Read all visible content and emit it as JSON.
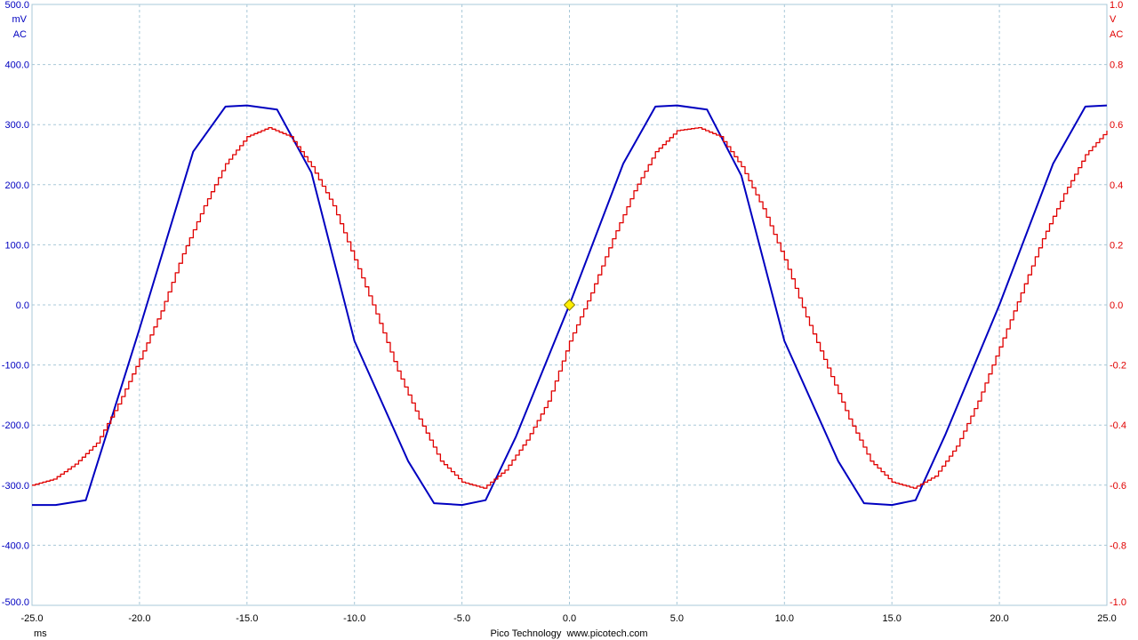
{
  "chart_data": {
    "type": "line",
    "footer": "Pico Technology  www.picotech.com",
    "x_axis": {
      "unit": "ms",
      "range": [
        -25,
        25
      ],
      "ticks": [
        "-25.0",
        "-20.0",
        "-15.0",
        "-10.0",
        "-5.0",
        "0.0",
        "5.0",
        "10.0",
        "15.0",
        "20.0",
        "25.0"
      ]
    },
    "y_left": {
      "unit": "mV",
      "coupling": "AC",
      "range": [
        -500,
        500
      ],
      "color": "#0000c0",
      "ticks": [
        "500.0",
        "400.0",
        "300.0",
        "200.0",
        "100.0",
        "0.0",
        "-100.0",
        "-200.0",
        "-300.0",
        "-400.0",
        "-500.0"
      ]
    },
    "y_right": {
      "unit": "V",
      "coupling": "AC",
      "range": [
        -1.0,
        1.0
      ],
      "color": "#e00000",
      "ticks": [
        "1.0",
        "0.8",
        "0.6",
        "0.4",
        "0.2",
        "0.0",
        "-0.2",
        "-0.4",
        "-0.6",
        "-0.8",
        "-1.0"
      ]
    },
    "grid": true,
    "trigger_marker": {
      "x": 0.0,
      "y": 0.0,
      "color": "#ffee00"
    },
    "series": [
      {
        "color": "#0000c0",
        "axis": "left",
        "x": [
          -25.0,
          -23.9,
          -22.5,
          -20.0,
          -17.5,
          -16.0,
          -15.0,
          -13.6,
          -12.0,
          -10.0,
          -7.5,
          -6.3,
          -5.0,
          -3.9,
          -2.5,
          0.0,
          2.5,
          4.0,
          5.0,
          6.4,
          8.0,
          10.0,
          12.5,
          13.7,
          15.0,
          16.1,
          17.5,
          20.0,
          22.5,
          24.0,
          25.0
        ],
        "y": [
          -333,
          -333,
          -325,
          -40,
          255,
          330,
          332,
          325,
          220,
          -60,
          -260,
          -330,
          -333,
          -325,
          -220,
          0,
          235,
          330,
          332,
          325,
          215,
          -60,
          -260,
          -330,
          -333,
          -325,
          -215,
          0,
          235,
          330,
          332
        ]
      },
      {
        "color": "#e00000",
        "axis": "right",
        "x": [
          -25.0,
          -24.0,
          -23.0,
          -22.0,
          -21.0,
          -20.0,
          -19.0,
          -18.0,
          -17.0,
          -16.0,
          -15.0,
          -14.0,
          -13.0,
          -12.0,
          -11.0,
          -10.0,
          -9.0,
          -8.0,
          -7.0,
          -6.0,
          -5.0,
          -4.0,
          -3.0,
          -2.0,
          -1.0,
          0.0,
          1.0,
          2.0,
          3.0,
          4.0,
          5.0,
          6.0,
          7.0,
          8.0,
          9.0,
          10.0,
          11.0,
          12.0,
          13.0,
          14.0,
          15.0,
          16.0,
          17.0,
          18.0,
          19.0,
          20.0,
          21.0,
          22.0,
          23.0,
          24.0,
          25.0
        ],
        "y": [
          -0.6,
          -0.58,
          -0.53,
          -0.46,
          -0.33,
          -0.18,
          -0.02,
          0.17,
          0.33,
          0.47,
          0.56,
          0.59,
          0.56,
          0.46,
          0.33,
          0.15,
          -0.03,
          -0.22,
          -0.38,
          -0.52,
          -0.59,
          -0.61,
          -0.55,
          -0.45,
          -0.32,
          -0.12,
          0.04,
          0.22,
          0.38,
          0.51,
          0.58,
          0.59,
          0.56,
          0.46,
          0.32,
          0.15,
          -0.04,
          -0.21,
          -0.38,
          -0.52,
          -0.59,
          -0.61,
          -0.57,
          -0.47,
          -0.32,
          -0.14,
          0.04,
          0.22,
          0.37,
          0.5,
          0.58
        ]
      }
    ]
  }
}
